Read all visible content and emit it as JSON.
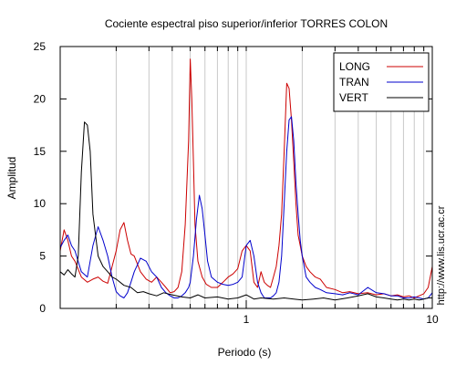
{
  "chart_data": {
    "type": "line",
    "title": "Cociente espectral piso superior/inferior  TORRES COLON",
    "xlabel": "Periodo (s)",
    "ylabel": "Amplitud",
    "xscale": "log",
    "xlim": [
      0.1,
      10
    ],
    "ylim": [
      0,
      25
    ],
    "x_ticks": [
      1,
      10
    ],
    "x_tick_labels": [
      "1",
      "10"
    ],
    "y_ticks": [
      0,
      5,
      10,
      15,
      20,
      25
    ],
    "y_tick_labels": [
      "0",
      "5",
      "10",
      "15",
      "20",
      "25"
    ],
    "grid": "vertical",
    "legend_position": "top-right",
    "side_text": "http://www.lis.ucr.ac.cr",
    "series": [
      {
        "name": "LONG",
        "color": "#cc0000",
        "x": [
          0.1,
          0.105,
          0.11,
          0.115,
          0.12,
          0.13,
          0.14,
          0.15,
          0.16,
          0.17,
          0.18,
          0.19,
          0.2,
          0.21,
          0.22,
          0.23,
          0.24,
          0.25,
          0.27,
          0.29,
          0.31,
          0.33,
          0.35,
          0.37,
          0.39,
          0.41,
          0.43,
          0.45,
          0.47,
          0.49,
          0.5,
          0.51,
          0.52,
          0.53,
          0.55,
          0.58,
          0.61,
          0.65,
          0.7,
          0.75,
          0.8,
          0.85,
          0.9,
          0.95,
          1.0,
          1.05,
          1.1,
          1.15,
          1.2,
          1.25,
          1.3,
          1.35,
          1.4,
          1.45,
          1.5,
          1.55,
          1.6,
          1.65,
          1.7,
          1.75,
          1.8,
          1.85,
          1.9,
          1.95,
          2.0,
          2.1,
          2.2,
          2.35,
          2.5,
          2.7,
          3.0,
          3.3,
          3.6,
          4.0,
          4.5,
          5.0,
          5.5,
          6.0,
          6.5,
          7.0,
          7.5,
          8.0,
          8.5,
          9.0,
          9.5,
          10.0
        ],
        "values": [
          5.5,
          7.5,
          6.5,
          5.0,
          4.5,
          3.0,
          2.5,
          2.8,
          3.0,
          2.6,
          2.4,
          4.0,
          5.5,
          7.5,
          8.2,
          6.5,
          5.2,
          5.0,
          3.5,
          2.8,
          2.5,
          3.0,
          2.5,
          2.0,
          1.5,
          1.6,
          2.0,
          3.5,
          8.0,
          16.0,
          23.8,
          20.0,
          14.0,
          8.0,
          4.5,
          3.0,
          2.3,
          2.0,
          2.0,
          2.5,
          3.0,
          3.3,
          3.8,
          5.5,
          6.0,
          5.5,
          2.5,
          2.0,
          3.5,
          2.5,
          2.2,
          2.0,
          3.0,
          4.0,
          6.0,
          9.0,
          15.0,
          21.5,
          21.0,
          18.0,
          14.0,
          10.0,
          7.0,
          6.0,
          5.0,
          4.0,
          3.5,
          3.0,
          2.8,
          2.0,
          1.8,
          1.5,
          1.6,
          1.4,
          1.5,
          1.3,
          1.4,
          1.2,
          1.3,
          1.1,
          1.2,
          1.0,
          1.2,
          1.4,
          2.0,
          4.0
        ]
      },
      {
        "name": "TRAN",
        "color": "#0000cc",
        "x": [
          0.1,
          0.105,
          0.11,
          0.115,
          0.12,
          0.13,
          0.14,
          0.15,
          0.16,
          0.17,
          0.18,
          0.19,
          0.2,
          0.21,
          0.22,
          0.23,
          0.24,
          0.25,
          0.27,
          0.29,
          0.31,
          0.33,
          0.35,
          0.37,
          0.39,
          0.41,
          0.43,
          0.45,
          0.47,
          0.49,
          0.5,
          0.52,
          0.54,
          0.56,
          0.58,
          0.6,
          0.62,
          0.65,
          0.7,
          0.75,
          0.8,
          0.85,
          0.9,
          0.95,
          1.0,
          1.05,
          1.1,
          1.15,
          1.2,
          1.25,
          1.3,
          1.35,
          1.4,
          1.45,
          1.5,
          1.55,
          1.6,
          1.65,
          1.7,
          1.75,
          1.8,
          1.85,
          1.9,
          1.95,
          2.0,
          2.1,
          2.2,
          2.35,
          2.5,
          2.7,
          3.0,
          3.3,
          3.6,
          4.0,
          4.5,
          5.0,
          5.5,
          6.0,
          6.5,
          7.0,
          7.5,
          8.0,
          8.5,
          9.0,
          9.5,
          10.0
        ],
        "values": [
          5.8,
          6.5,
          7.0,
          6.0,
          5.5,
          3.5,
          3.0,
          6.0,
          7.8,
          6.5,
          5.0,
          3.0,
          1.6,
          1.2,
          1.0,
          1.5,
          2.5,
          3.5,
          4.8,
          4.5,
          3.5,
          3.0,
          2.0,
          1.5,
          1.2,
          1.0,
          1.0,
          1.2,
          1.5,
          2.0,
          2.5,
          5.0,
          8.5,
          10.8,
          9.5,
          7.0,
          4.5,
          3.0,
          2.5,
          2.3,
          2.2,
          2.3,
          2.5,
          3.0,
          6.0,
          6.5,
          5.0,
          2.5,
          1.5,
          1.0,
          1.0,
          1.0,
          1.2,
          1.5,
          2.5,
          5.0,
          10.0,
          15.0,
          18.0,
          18.3,
          16.0,
          12.0,
          9.0,
          6.5,
          5.0,
          3.0,
          2.5,
          2.0,
          1.8,
          1.5,
          1.4,
          1.3,
          1.5,
          1.3,
          2.0,
          1.5,
          1.4,
          1.2,
          1.2,
          1.0,
          1.0,
          1.1,
          1.0,
          0.9,
          1.0,
          1.5
        ]
      },
      {
        "name": "VERT",
        "color": "#000000",
        "x": [
          0.1,
          0.105,
          0.11,
          0.115,
          0.12,
          0.125,
          0.13,
          0.135,
          0.14,
          0.145,
          0.15,
          0.16,
          0.17,
          0.18,
          0.19,
          0.2,
          0.22,
          0.24,
          0.26,
          0.28,
          0.3,
          0.33,
          0.36,
          0.4,
          0.45,
          0.5,
          0.55,
          0.6,
          0.7,
          0.8,
          0.9,
          1.0,
          1.1,
          1.2,
          1.4,
          1.6,
          1.8,
          2.0,
          2.3,
          2.6,
          3.0,
          3.5,
          4.0,
          4.5,
          5.0,
          5.5,
          6.0,
          6.5,
          7.0,
          7.5,
          8.0,
          8.5,
          9.0,
          9.5,
          10.0
        ],
        "values": [
          3.5,
          3.2,
          3.7,
          3.3,
          3.0,
          5.0,
          13.0,
          17.8,
          17.5,
          15.0,
          9.0,
          5.0,
          4.0,
          3.5,
          3.0,
          2.8,
          2.2,
          2.0,
          1.5,
          1.6,
          1.4,
          1.2,
          1.5,
          1.3,
          1.1,
          1.0,
          1.3,
          1.0,
          1.1,
          0.9,
          1.0,
          1.3,
          0.9,
          1.0,
          0.9,
          1.0,
          0.9,
          0.8,
          0.9,
          1.0,
          0.8,
          1.0,
          1.2,
          1.4,
          1.1,
          1.0,
          0.9,
          0.8,
          0.9,
          0.8,
          0.9,
          0.8,
          0.9,
          1.0,
          1.0
        ]
      }
    ]
  }
}
